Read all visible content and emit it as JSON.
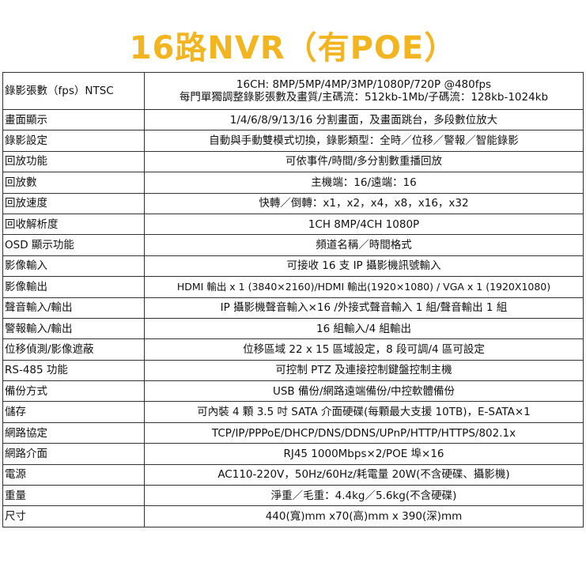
{
  "title": "16路NVR（有POE）",
  "rows": [
    {
      "label": "錄影張數（fps）NTSC",
      "value": "16CH: 8MP/5MP/4MP/3MP/1080P/720P @480fps",
      "value2": "每門單獨調整錄影張數及畫質/主碼流：512kb-1Mb/子碼流：128kb-1024kb"
    },
    {
      "label": "畫面顯示",
      "value": "1/4/6/8/9/13/16 分割畫面，及畫面跳台，多段數位放大"
    },
    {
      "label": "錄影設定",
      "value": "自動與手動雙模式切換，錄影類型：全時／位移／警報／智能錄影"
    },
    {
      "label": "回放功能",
      "value": "可依事件/時間/多分割數重播回放"
    },
    {
      "label": "回放數",
      "value": "主機端：16/遠端：16"
    },
    {
      "label": "回放速度",
      "value": "快轉／倒轉：x1，x2，x4，x8，x16，x32"
    },
    {
      "label": "回收解析度",
      "value": "1CH 8MP/4CH 1080P"
    },
    {
      "label": "OSD 顯示功能",
      "value": "頻道名稱／時間格式"
    },
    {
      "label": "影像輸入",
      "value": "可接收 16 支 IP 攝影機訊號輸入"
    },
    {
      "label": "影像輸出",
      "value": "HDMI 輸出 x 1 (3840×2160)/HDMI 輸出(1920×1080) / VGA x 1 (1920X1080)"
    },
    {
      "label": "聲音輸入/輸出",
      "value": "IP 攝影機聲音輸入×16 /外接式聲音輸入 1 組/聲音輸出 1 組"
    },
    {
      "label": "警報輸入/輸出",
      "value": "16 組輸入/4 組輸出"
    },
    {
      "label": "位移偵測/影像遮蔽",
      "value": "位移區域 22 x 15 區域設定，8 段可調/4 區可設定"
    },
    {
      "label": "RS-485 功能",
      "value": "可控制 PTZ 及連接控制鍵盤控制主機"
    },
    {
      "label": "備份方式",
      "value": "USB 備份/網路遠端備份/中控軟體備份"
    },
    {
      "label": "儲存",
      "value": "可內裝 4 顆 3.5 吋 SATA 介面硬碟(每顆最大支援 10TB)，E-SATA×1"
    },
    {
      "label": "網路協定",
      "value": "TCP/IP/PPPoE/DHCP/DNS/DDNS/UPnP/HTTP/HTTPS/802.1x"
    },
    {
      "label": "網路介面",
      "value": "RJ45 1000Mbps×2/POE 埠×16"
    },
    {
      "label": "電源",
      "value": "AC110-220V，50Hz/60Hz/耗電量 20W(不含硬碟、攝影機)"
    },
    {
      "label": "重量",
      "value": "淨重／毛重：4.4kg／5.6kg(不含硬碟)"
    },
    {
      "label": "尺寸",
      "value": "440(寬)mm x70(高)mm x 390(深)mm"
    }
  ]
}
